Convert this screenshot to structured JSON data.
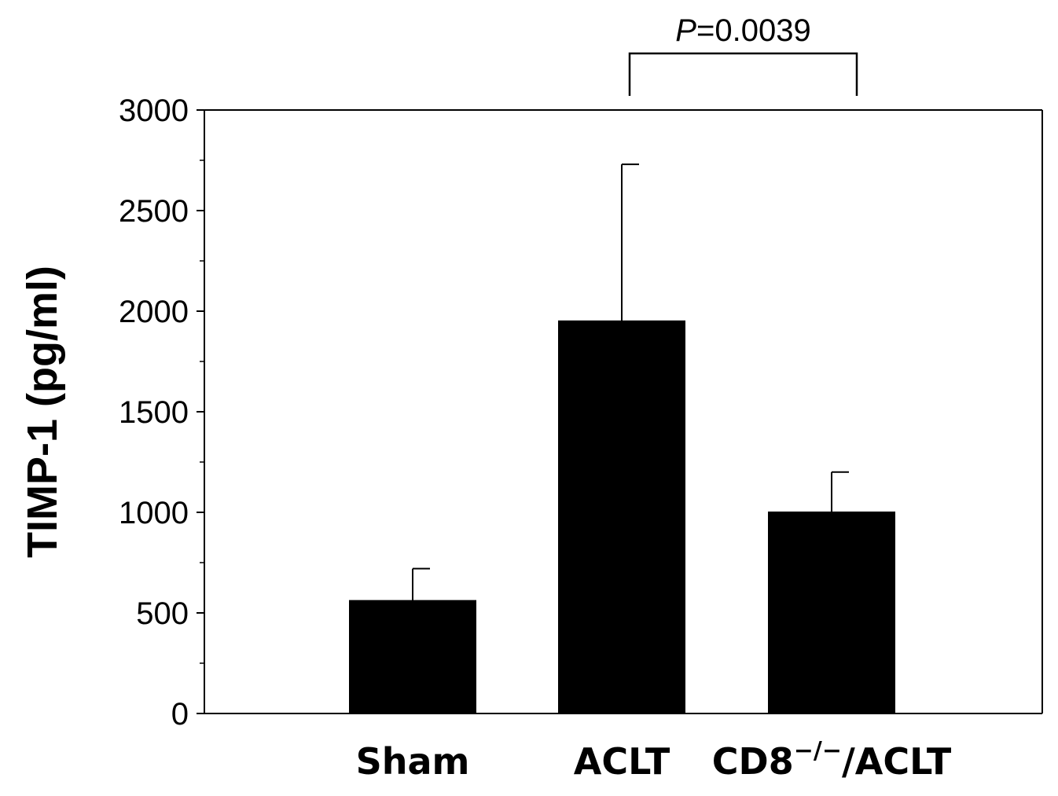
{
  "chart_data": {
    "type": "bar",
    "title": "",
    "xlabel": "",
    "ylabel": "TIMP-1 (pg/ml)",
    "ylim": [
      0,
      3000
    ],
    "yticks": [
      0,
      500,
      1000,
      1500,
      2000,
      2500,
      3000
    ],
    "ytick_labels": [
      "0",
      "500",
      "1000",
      "1500",
      "2000",
      "2500",
      "3000"
    ],
    "grid": false,
    "categories": [
      {
        "main": "Sham",
        "sup": "",
        "suffix": ""
      },
      {
        "main": "ACLT",
        "sup": "",
        "suffix": ""
      },
      {
        "main": "CD8",
        "sup": "−/−",
        "suffix": "/ACLT"
      }
    ],
    "series": [
      {
        "name": "TIMP-1",
        "values": [
          560,
          1950,
          1000
        ],
        "error_plus": [
          160,
          780,
          200
        ],
        "color": "#000000"
      }
    ],
    "annotations": [
      {
        "type": "significance_bracket",
        "from_category": 1,
        "to_category": 2,
        "label_italic": "P",
        "label_rest": "=0.0039"
      }
    ]
  }
}
